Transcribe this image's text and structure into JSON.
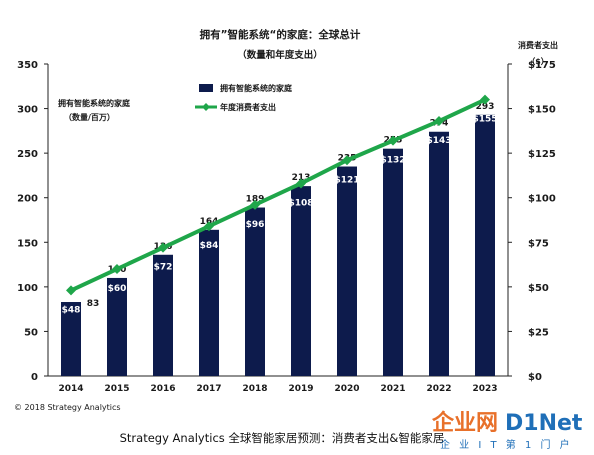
{
  "chart_data": {
    "type": "bar",
    "title": "拥有”智能系统“的家庭：全球总计",
    "subtitle": "（数量和年度支出）",
    "categories": [
      "2014",
      "2015",
      "2016",
      "2017",
      "2018",
      "2019",
      "2020",
      "2021",
      "2022",
      "2023"
    ],
    "y_left_label_line1": "拥有智能系统的家庭",
    "y_left_label_line2": "（数量/百万）",
    "y_right_label_line1": "消费者支出",
    "y_right_label_line2": "（$）",
    "ylim_left": [
      0,
      350
    ],
    "ylim_right": [
      0,
      175
    ],
    "left_ticks": [
      "0",
      "50",
      "100",
      "150",
      "200",
      "250",
      "300",
      "350"
    ],
    "right_ticks": [
      "$0",
      "$25",
      "$50",
      "$75",
      "$100",
      "$125",
      "$150",
      "$175"
    ],
    "series": [
      {
        "name": "拥有智能系统的家庭",
        "type": "bar",
        "axis": "left",
        "color": "#0d1b4c",
        "values": [
          83,
          110,
          136,
          164,
          189,
          213,
          235,
          255,
          274,
          293
        ],
        "labels": [
          "83",
          "110",
          "136",
          "164",
          "189",
          "213",
          "235",
          "255",
          "274",
          "293"
        ]
      },
      {
        "name": "年度消费者支出",
        "type": "line",
        "axis": "right",
        "color": "#1fa64a",
        "values": [
          48,
          60,
          72,
          84,
          96,
          108,
          121,
          132,
          143,
          155
        ],
        "labels": [
          "$48",
          "$60",
          "$72",
          "$84",
          "$96",
          "$108",
          "$121",
          "$132",
          "$143",
          "$155"
        ]
      }
    ],
    "grid": false,
    "legend_position": "top-left"
  },
  "copyright": "© 2018 Strategy Analytics",
  "caption": "Strategy Analytics 全球智能家居预测：消费者支出&智能家居",
  "watermark": {
    "main": "企业网",
    "net": "D1Net",
    "sub": "企 业 I T 第 1 门 户"
  }
}
